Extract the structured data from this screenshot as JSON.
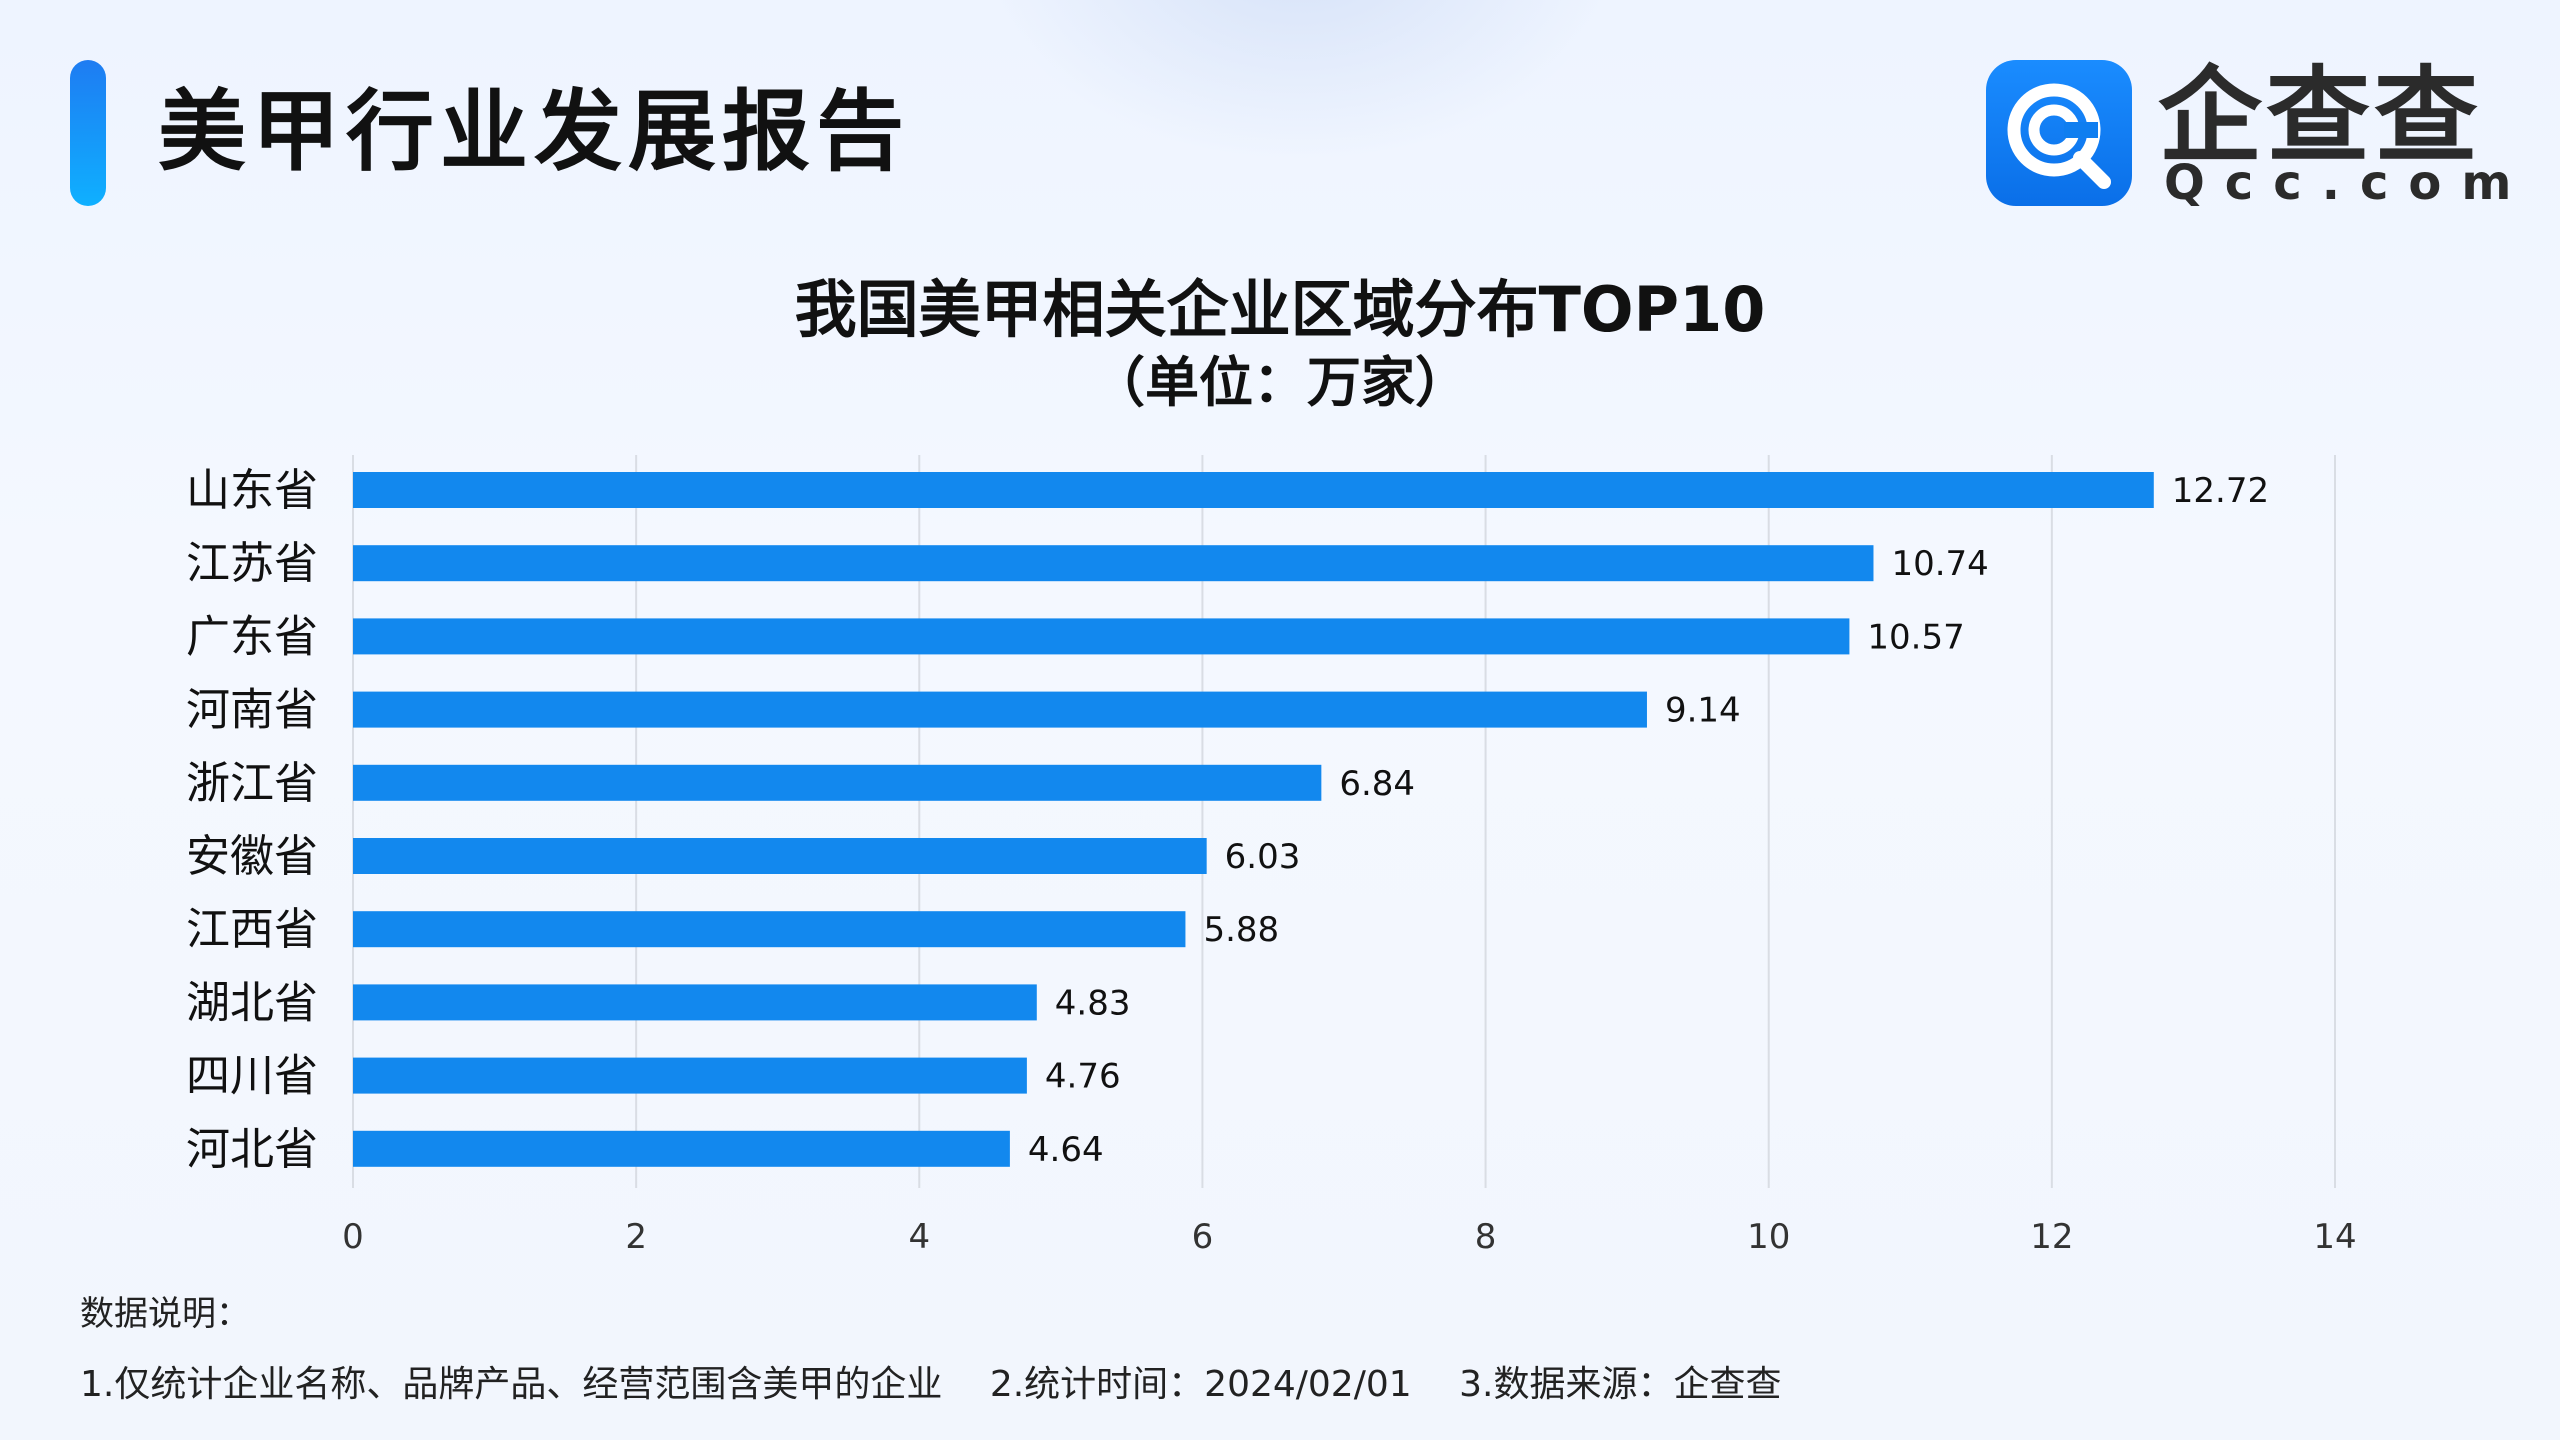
{
  "header": {
    "report_title": "美甲行业发展报告",
    "logo_cn": "企查查",
    "logo_en": "Qcc.com",
    "logo_icon": "qcc-magnifier-logo"
  },
  "colors": {
    "bar": "#1288ee",
    "accent_top": "#1e7cf2",
    "accent_bottom": "#0fb0ff",
    "gridline": "#d9dde4"
  },
  "chart_data": {
    "type": "bar",
    "orientation": "horizontal",
    "title": "我国美甲相关企业区域分布TOP10",
    "subtitle": "（单位：万家）",
    "categories": [
      "山东省",
      "江苏省",
      "广东省",
      "河南省",
      "浙江省",
      "安徽省",
      "江西省",
      "湖北省",
      "四川省",
      "河北省"
    ],
    "values": [
      12.72,
      10.74,
      10.57,
      9.14,
      6.84,
      6.03,
      5.88,
      4.83,
      4.76,
      4.64
    ],
    "value_labels": [
      "12.72",
      "10.74",
      "10.57",
      "9.14",
      "6.84",
      "6.03",
      "5.88",
      "4.83",
      "4.76",
      "4.64"
    ],
    "xlim": [
      0,
      14
    ],
    "xticks": [
      "0",
      "2",
      "4",
      "6",
      "8",
      "10",
      "12",
      "14"
    ],
    "grid": "vertical",
    "legend": "none"
  },
  "notes": {
    "title": "数据说明：",
    "items": [
      "1.仅统计企业名称、品牌产品、经营范围含美甲的企业",
      "2.统计时间：2024/02/01",
      "3.数据来源：企查查"
    ]
  }
}
